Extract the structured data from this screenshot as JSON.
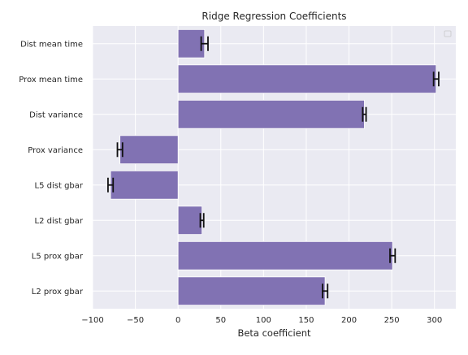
{
  "chart_data": {
    "type": "bar",
    "orientation": "horizontal",
    "title": "Ridge Regression Coefficients",
    "xlabel": "Beta coefficient",
    "ylabel": "",
    "xlim": [
      -100,
      325
    ],
    "xticks": [
      -100,
      -50,
      0,
      50,
      100,
      150,
      200,
      250,
      300
    ],
    "xtick_labels": [
      "−100",
      "−50",
      "0",
      "50",
      "100",
      "150",
      "200",
      "250",
      "300"
    ],
    "categories": [
      "Dist mean time",
      "Prox mean time",
      "Dist variance",
      "Prox variance",
      "L5 dist gbar",
      "L2 dist gbar",
      "L5 prox gbar",
      "L2 prox gbar"
    ],
    "values": [
      31,
      302,
      218,
      -68,
      -79,
      28,
      251,
      172
    ],
    "errors": [
      4,
      3,
      2,
      3,
      3,
      2,
      3,
      3
    ],
    "bar_color": "#8172b3",
    "error_color": "#111111",
    "background_color": "#eaeaf2",
    "grid_color": "#ffffff",
    "grid": true,
    "legend": {
      "placement": "top-right",
      "entries": []
    }
  }
}
